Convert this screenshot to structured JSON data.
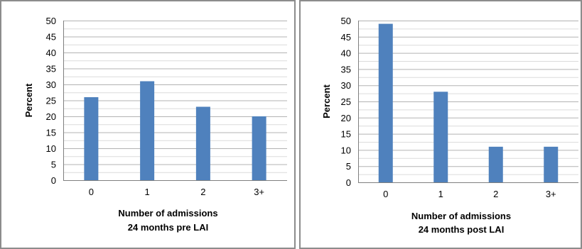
{
  "chart_data": [
    {
      "type": "bar",
      "categories": [
        "0",
        "1",
        "2",
        "3+"
      ],
      "values": [
        26,
        31,
        23,
        20
      ],
      "xlabel": [
        "Number of admissions",
        "24 months pre LAI"
      ],
      "ylabel": "Percent",
      "ylim": [
        0,
        50
      ],
      "yticks": [
        0,
        5,
        10,
        15,
        20,
        25,
        30,
        35,
        40,
        45,
        50
      ],
      "grid": true,
      "bar_color": "#4f81bd"
    },
    {
      "type": "bar",
      "categories": [
        "0",
        "1",
        "2",
        "3+"
      ],
      "values": [
        49,
        28,
        11,
        11
      ],
      "xlabel": [
        "Number of admissions",
        "24 months post LAI"
      ],
      "ylabel": "Percent",
      "ylim": [
        0,
        50
      ],
      "yticks": [
        0,
        5,
        10,
        15,
        20,
        25,
        30,
        35,
        40,
        45,
        50
      ],
      "grid": true,
      "bar_color": "#4f81bd"
    }
  ]
}
